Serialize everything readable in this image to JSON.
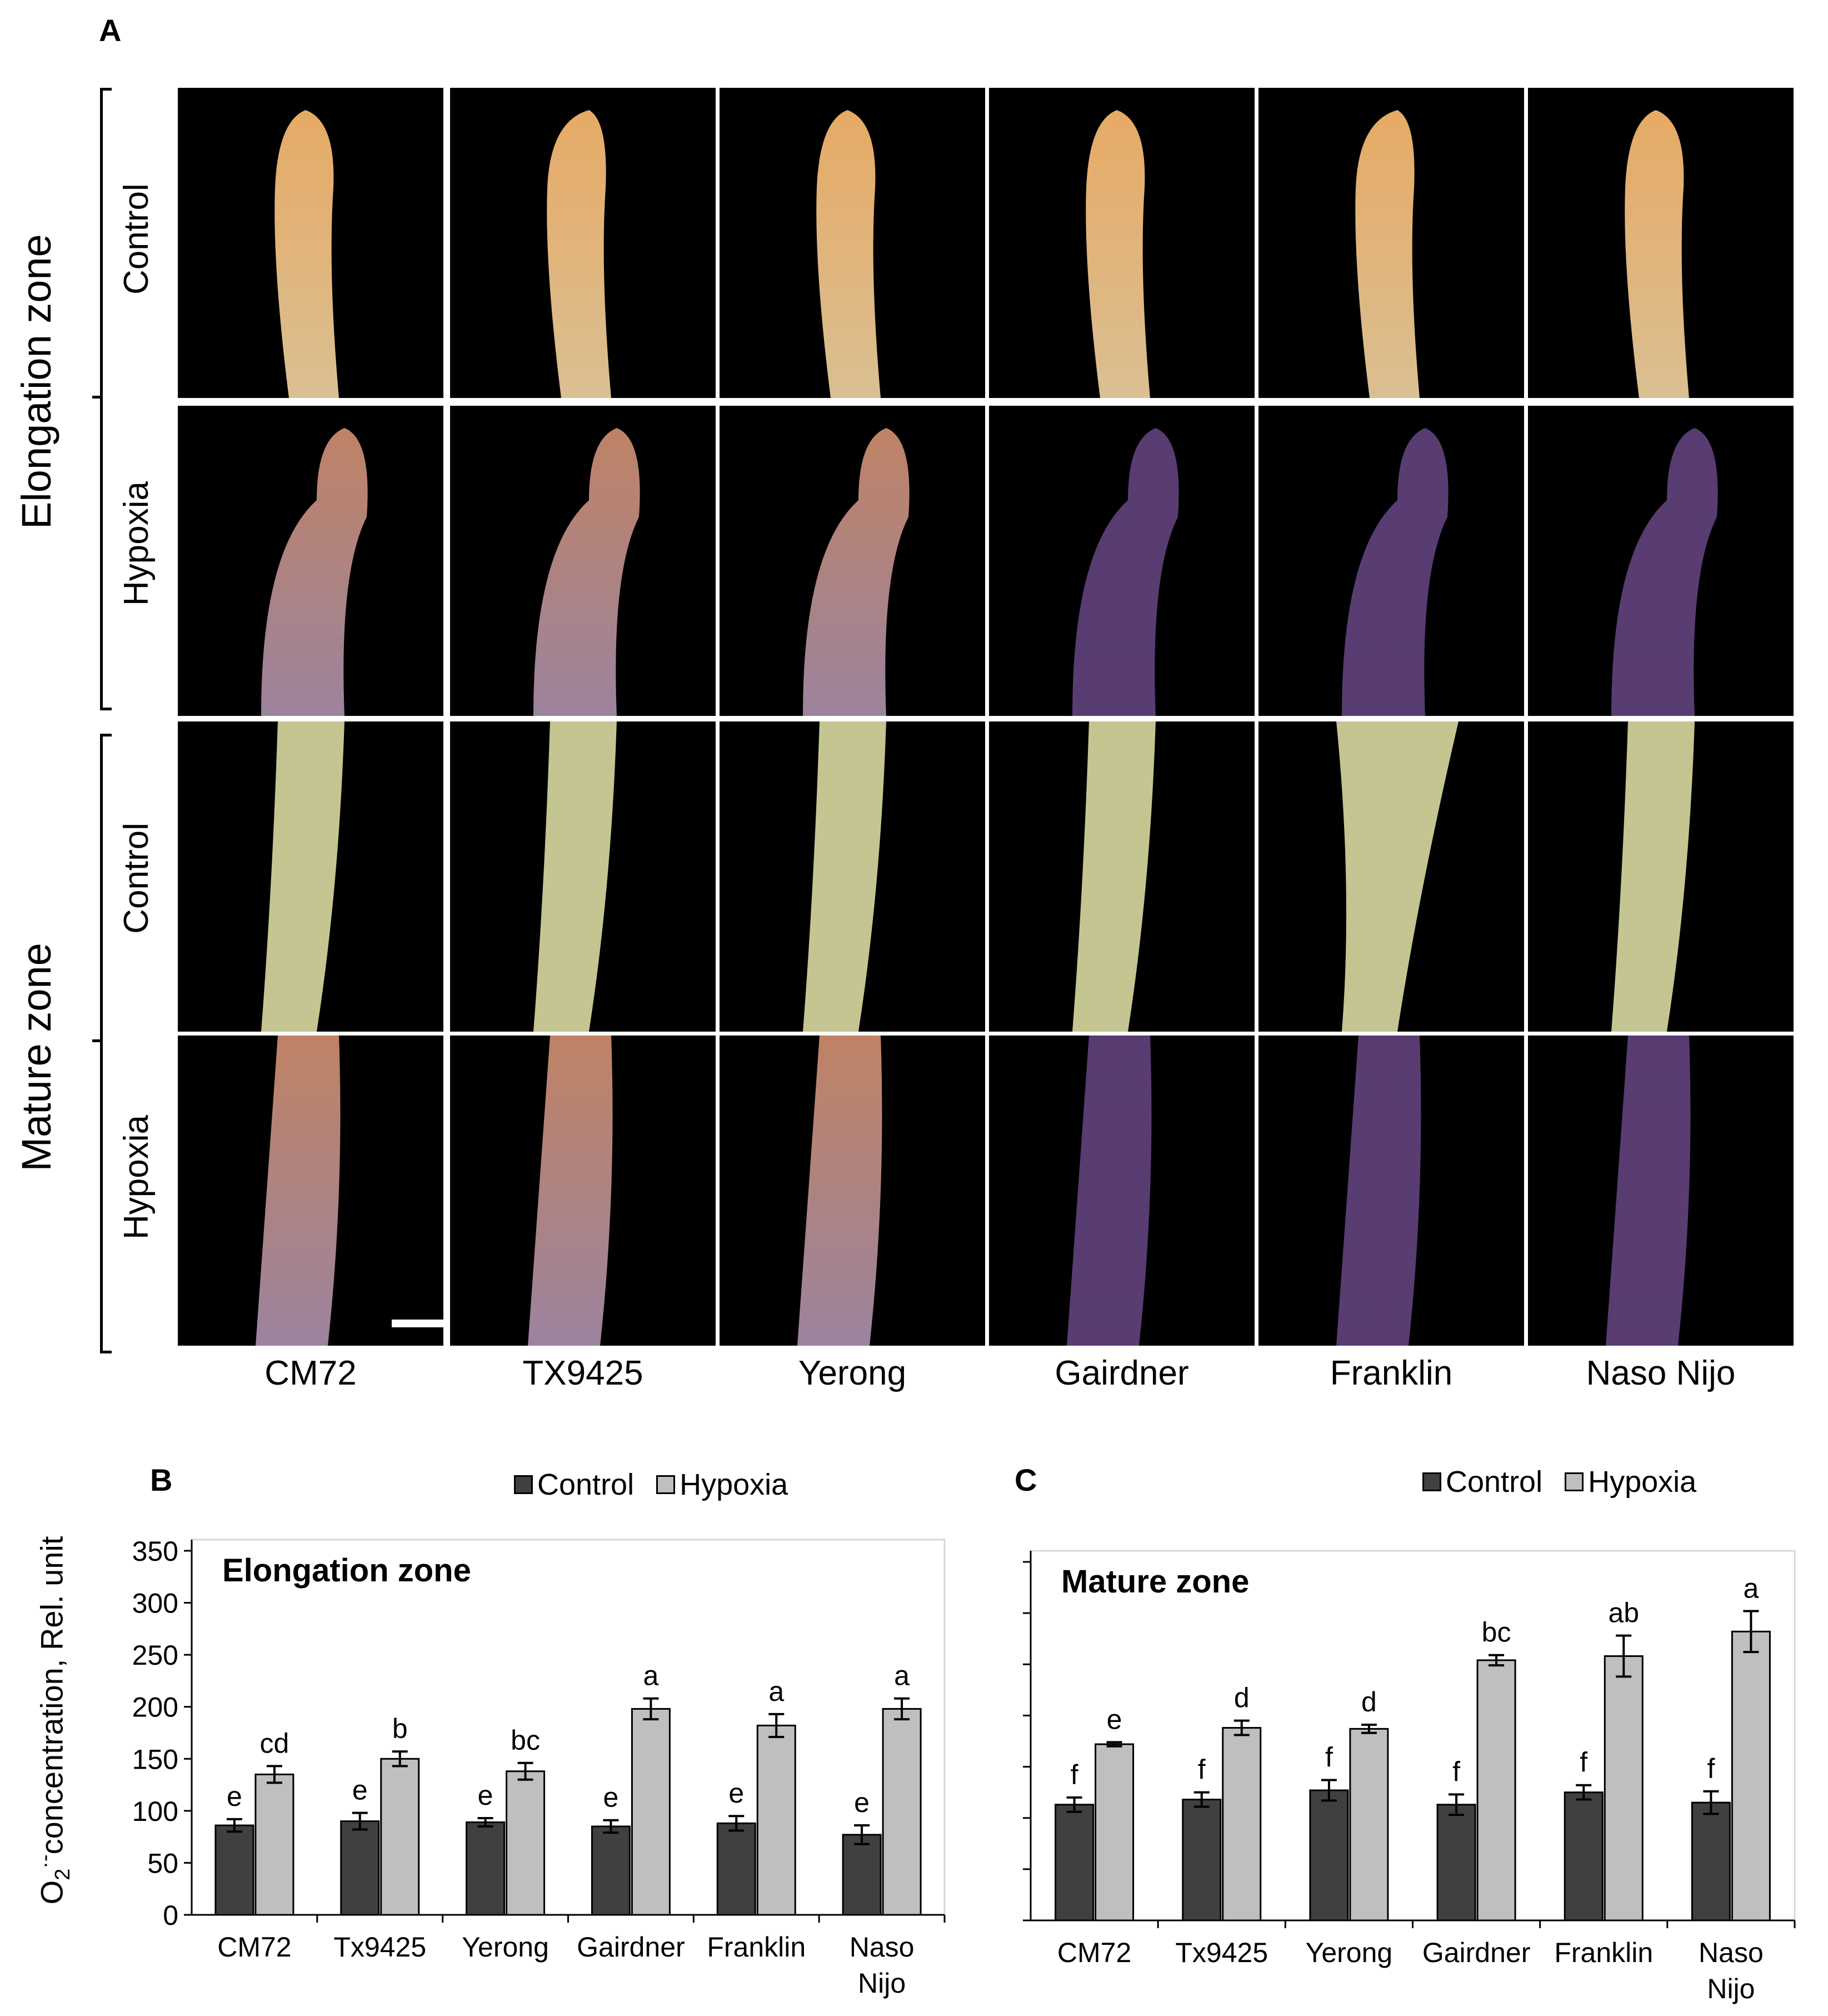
{
  "panel_labels": {
    "a": "A",
    "b": "B",
    "c": "C"
  },
  "photo_grid": {
    "zones": [
      "Elongation zone",
      "Mature zone"
    ],
    "row_labels": [
      "Control",
      "Hypoxia",
      "Control",
      "Hypoxia"
    ],
    "columns": [
      "CM72",
      "TX9425",
      "Yerong",
      "Gairdner",
      "Franklin",
      "Naso Nijo"
    ],
    "colors": {
      "background": "#000000",
      "control_elongation": "#e6c99a",
      "control_tip": "#f2b36a",
      "control_mature": "#cfcf9a",
      "hypoxia_light": "#a48aa6",
      "hypoxia_dark": "#5c3f78"
    }
  },
  "legend": {
    "control": "Control",
    "hypoxia": "Hypoxia"
  },
  "colors": {
    "control": "#404040",
    "hypoxia": "#bfbfbf"
  },
  "y_axis_label": {
    "main": "O",
    "sub": "2",
    "sup": "·-",
    "rest": "concentration, Rel. unit"
  },
  "chart_data": [
    {
      "type": "bar",
      "title": "Elongation zone",
      "categories": [
        "CM72",
        "Tx9425",
        "Yerong",
        "Gairdner",
        "Franklin",
        "Naso Nijo"
      ],
      "ylim": [
        0,
        350
      ],
      "yticks": [
        0,
        50,
        100,
        150,
        200,
        250,
        300,
        350
      ],
      "series": [
        {
          "name": "Control",
          "values": [
            86,
            90,
            89,
            85,
            88,
            77
          ],
          "errors": [
            6,
            8,
            4,
            6,
            7,
            9
          ],
          "labels": [
            "e",
            "e",
            "e",
            "e",
            "e",
            "e"
          ]
        },
        {
          "name": "Hypoxia",
          "values": [
            135,
            150,
            138,
            198,
            182,
            198
          ],
          "errors": [
            8,
            7,
            8,
            10,
            11,
            10
          ],
          "labels": [
            "cd",
            "b",
            "bc",
            "a",
            "a",
            "a"
          ]
        }
      ]
    },
    {
      "type": "bar",
      "title": "Mature zone",
      "categories": [
        "CM72",
        "Tx9425",
        "Yerong",
        "Gairdner",
        "Franklin",
        "Naso Nijo"
      ],
      "ylim": [
        0,
        350
      ],
      "yticks": [
        0,
        50,
        100,
        150,
        200,
        250,
        300,
        350
      ],
      "series": [
        {
          "name": "Control",
          "values": [
            113,
            118,
            127,
            113,
            125,
            115
          ],
          "errors": [
            7,
            7,
            10,
            10,
            7,
            11
          ],
          "labels": [
            "f",
            "f",
            "f",
            "f",
            "f",
            "f"
          ]
        },
        {
          "name": "Hypoxia",
          "values": [
            172,
            188,
            187,
            254,
            258,
            282
          ],
          "errors": [
            2,
            7,
            4,
            5,
            20,
            20
          ],
          "labels": [
            "e",
            "d",
            "d",
            "bc",
            "ab",
            "a"
          ]
        }
      ]
    }
  ]
}
